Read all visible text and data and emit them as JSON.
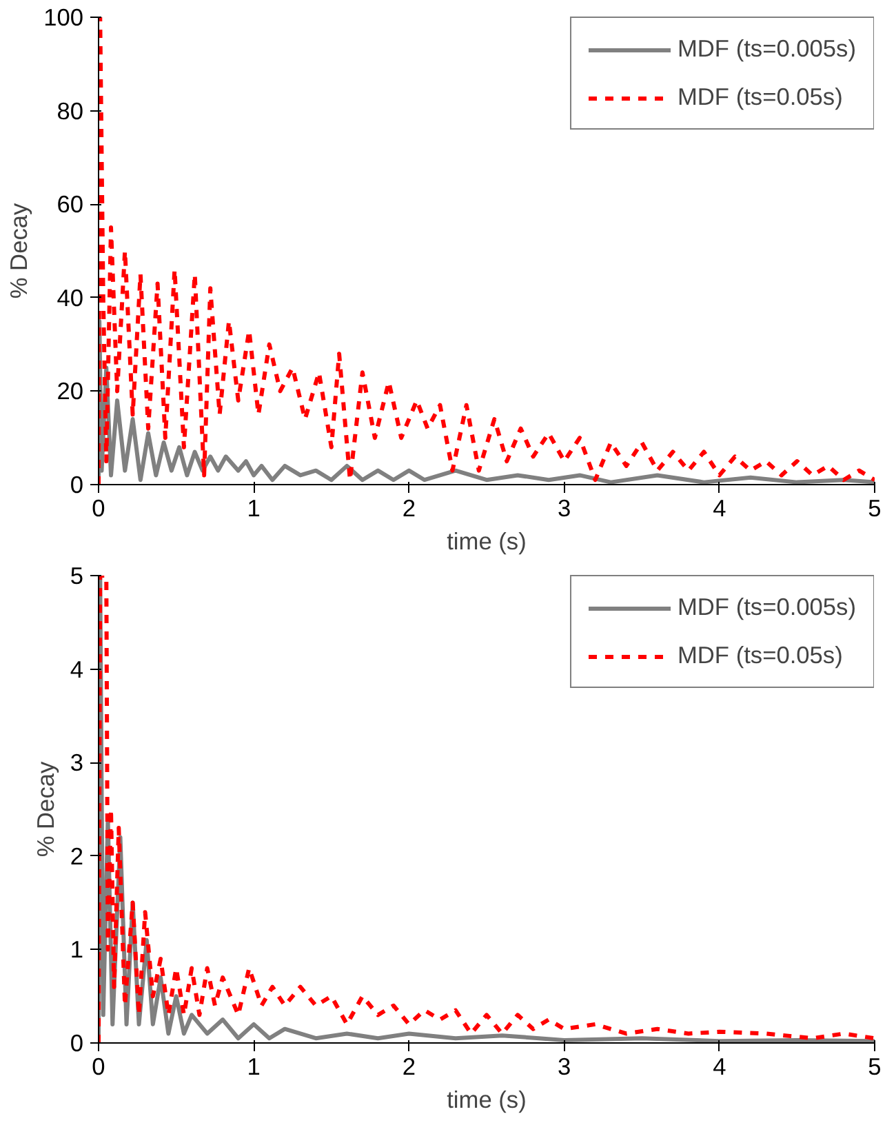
{
  "chart_data": [
    {
      "type": "line",
      "xlabel": "time (s)",
      "ylabel": "% Decay",
      "xlim": [
        0,
        5
      ],
      "ylim": [
        0,
        100
      ],
      "xticks": [
        0,
        1,
        2,
        3,
        4,
        5
      ],
      "yticks": [
        0,
        20,
        40,
        60,
        80,
        100
      ],
      "grid": false,
      "legend": "top right",
      "series": [
        {
          "name": "MDF (ts=0.005s)",
          "color": "#808080",
          "line_style": "solid",
          "x": [
            0,
            0.005,
            0.02,
            0.05,
            0.08,
            0.12,
            0.17,
            0.22,
            0.27,
            0.32,
            0.37,
            0.42,
            0.47,
            0.52,
            0.57,
            0.62,
            0.67,
            0.72,
            0.77,
            0.82,
            0.9,
            0.95,
            1.0,
            1.05,
            1.12,
            1.2,
            1.3,
            1.4,
            1.5,
            1.6,
            1.7,
            1.8,
            1.9,
            2.0,
            2.1,
            2.3,
            2.5,
            2.7,
            2.9,
            3.1,
            3.3,
            3.6,
            3.9,
            4.2,
            4.5,
            4.8,
            5.0
          ],
          "values": [
            0,
            35,
            3,
            25,
            2,
            18,
            3,
            14,
            1,
            11,
            2,
            9,
            3,
            8,
            2,
            7,
            3,
            6,
            3,
            6,
            3,
            5,
            2,
            4,
            1,
            4,
            2,
            3,
            1,
            4,
            1,
            3,
            1,
            3,
            1,
            3,
            1,
            2,
            1,
            2,
            0.5,
            2,
            0.5,
            1.5,
            0.5,
            1,
            0.5
          ]
        },
        {
          "name": "MDF (ts=0.05s)",
          "color": "#ff0000",
          "line_style": "dashed",
          "x": [
            0,
            0.01,
            0.03,
            0.05,
            0.08,
            0.12,
            0.17,
            0.22,
            0.27,
            0.32,
            0.38,
            0.43,
            0.49,
            0.55,
            0.62,
            0.68,
            0.72,
            0.78,
            0.84,
            0.9,
            0.97,
            1.03,
            1.1,
            1.17,
            1.25,
            1.33,
            1.42,
            1.5,
            1.55,
            1.62,
            1.7,
            1.78,
            1.87,
            1.95,
            2.05,
            2.12,
            2.2,
            2.28,
            2.37,
            2.45,
            2.55,
            2.63,
            2.72,
            2.8,
            2.9,
            3.0,
            3.1,
            3.2,
            3.3,
            3.4,
            3.5,
            3.6,
            3.7,
            3.8,
            3.9,
            4.0,
            4.1,
            4.2,
            4.3,
            4.4,
            4.5,
            4.6,
            4.7,
            4.8,
            4.9,
            5.0
          ],
          "values": [
            0,
            100,
            40,
            5,
            55,
            20,
            50,
            15,
            45,
            12,
            43,
            10,
            46,
            8,
            45,
            2,
            42,
            15,
            35,
            18,
            33,
            15,
            30,
            20,
            25,
            14,
            24,
            8,
            28,
            1,
            24,
            10,
            22,
            10,
            18,
            12,
            17,
            3,
            17,
            3,
            14,
            5,
            12,
            6,
            11,
            5,
            10,
            1,
            9,
            4,
            9,
            3,
            7,
            3,
            7,
            2,
            6,
            3,
            5,
            2,
            5,
            2,
            4,
            1,
            3,
            1
          ]
        }
      ]
    },
    {
      "type": "line",
      "xlabel": "time (s)",
      "ylabel": "% Decay",
      "xlim": [
        0,
        5
      ],
      "ylim": [
        0,
        5
      ],
      "xticks": [
        0,
        1,
        2,
        3,
        4,
        5
      ],
      "yticks": [
        0,
        1,
        2,
        3,
        4,
        5
      ],
      "grid": false,
      "legend": "top right",
      "series": [
        {
          "name": "MDF (ts=0.005s)",
          "color": "#808080",
          "line_style": "solid",
          "x": [
            0,
            0.01,
            0.03,
            0.06,
            0.09,
            0.14,
            0.18,
            0.22,
            0.26,
            0.31,
            0.35,
            0.4,
            0.45,
            0.5,
            0.55,
            0.6,
            0.7,
            0.8,
            0.9,
            1.0,
            1.1,
            1.2,
            1.4,
            1.6,
            1.8,
            2.0,
            2.3,
            2.6,
            3.0,
            3.5,
            4.0,
            4.5,
            5.0
          ],
          "values": [
            0,
            5,
            0.3,
            2.4,
            0.2,
            2.2,
            0.2,
            1.5,
            0.2,
            1.1,
            0.2,
            0.7,
            0.1,
            0.5,
            0.1,
            0.3,
            0.1,
            0.25,
            0.05,
            0.2,
            0.05,
            0.15,
            0.05,
            0.1,
            0.05,
            0.1,
            0.05,
            0.08,
            0.03,
            0.05,
            0.02,
            0.03,
            0.02
          ]
        },
        {
          "name": "MDF (ts=0.05s)",
          "color": "#ff0000",
          "line_style": "dashed",
          "x": [
            0,
            0.01,
            0.05,
            0.06,
            0.08,
            0.1,
            0.13,
            0.17,
            0.22,
            0.26,
            0.3,
            0.35,
            0.4,
            0.45,
            0.5,
            0.55,
            0.6,
            0.65,
            0.7,
            0.75,
            0.8,
            0.9,
            0.97,
            1.05,
            1.12,
            1.2,
            1.3,
            1.4,
            1.5,
            1.6,
            1.7,
            1.8,
            1.9,
            2.0,
            2.1,
            2.2,
            2.3,
            2.4,
            2.5,
            2.6,
            2.7,
            2.8,
            2.9,
            3.0,
            3.2,
            3.4,
            3.6,
            3.8,
            4.0,
            4.3,
            4.6,
            4.8,
            5.0
          ],
          "values": [
            0,
            5,
            5,
            1.0,
            2.5,
            0.6,
            2.3,
            0.4,
            1.5,
            0.3,
            1.4,
            0.5,
            0.9,
            0.3,
            0.8,
            0.3,
            0.8,
            0.3,
            0.8,
            0.4,
            0.7,
            0.3,
            0.8,
            0.4,
            0.6,
            0.4,
            0.6,
            0.4,
            0.5,
            0.2,
            0.5,
            0.3,
            0.4,
            0.2,
            0.35,
            0.25,
            0.35,
            0.1,
            0.3,
            0.1,
            0.3,
            0.15,
            0.25,
            0.15,
            0.2,
            0.1,
            0.15,
            0.1,
            0.12,
            0.1,
            0.05,
            0.1,
            0.05
          ]
        }
      ]
    }
  ]
}
